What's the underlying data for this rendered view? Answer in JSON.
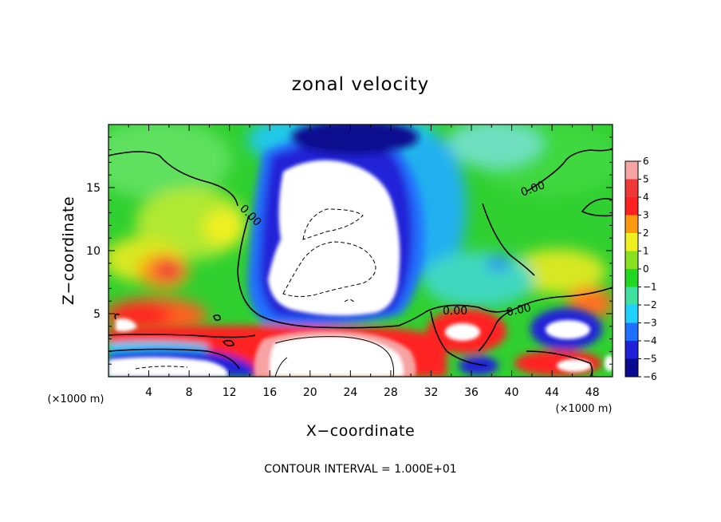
{
  "chart_data": {
    "type": "heatmap",
    "title": "zonal velocity",
    "xlabel": "X−coordinate",
    "ylabel": "Z−coordinate",
    "x_unit_left": "(×1000 m)",
    "x_unit_right": "(×1000 m)",
    "footer": "CONTOUR INTERVAL = 1.000E+01",
    "xlim": [
      0,
      50
    ],
    "ylim": [
      0,
      20
    ],
    "x_ticks": [
      4,
      8,
      12,
      16,
      20,
      24,
      28,
      32,
      36,
      40,
      44,
      48
    ],
    "y_ticks": [
      5,
      10,
      15
    ],
    "x_tick_labels": [
      "4",
      "8",
      "12",
      "16",
      "20",
      "24",
      "28",
      "32",
      "36",
      "40",
      "44",
      "48"
    ],
    "y_tick_labels": [
      "5",
      "10",
      "15"
    ],
    "colorbar": {
      "levels": [
        6,
        5,
        4,
        3,
        2,
        1,
        0,
        -1,
        -2,
        -3,
        -4,
        -5,
        -6
      ],
      "labels": [
        "6",
        "5",
        "4",
        "3",
        "2",
        "1",
        "0",
        "−1",
        "−2",
        "−3",
        "−4",
        "−5",
        "−6"
      ],
      "colors": [
        "#f6a3a3",
        "#f03838",
        "#ff2020",
        "#ff9a10",
        "#f0f020",
        "#88e020",
        "#20d820",
        "#40e0a0",
        "#20d0ff",
        "#2070ff",
        "#2020d8",
        "#0a0a90",
        "#7010a0"
      ]
    },
    "contour_labels": [
      "0.00",
      "0.00",
      "0.00",
      "0.00"
    ]
  }
}
